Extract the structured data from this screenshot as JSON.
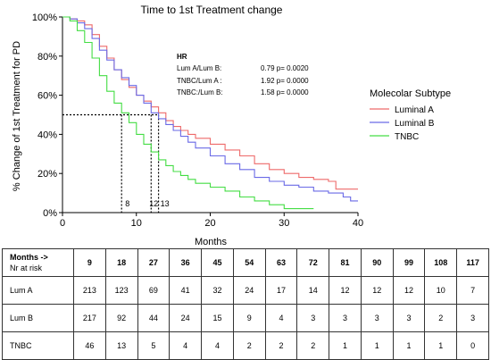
{
  "chart_data": {
    "type": "line",
    "subtype": "kaplan-meier step curve",
    "title": "Time to 1st Treatment change",
    "xlabel": "Months",
    "ylabel": "% Change of 1st Treatment for PD",
    "xlim": [
      0,
      40
    ],
    "ylim": [
      0,
      100
    ],
    "x_ticks": [
      0,
      10,
      20,
      30,
      40
    ],
    "y_ticks": [
      0,
      20,
      40,
      60,
      80,
      100
    ],
    "y_tick_labels": [
      "0%",
      "20%",
      "40%",
      "60%",
      "80%",
      "100%"
    ],
    "grid": false,
    "legend": {
      "title": "Molecolar Subtype",
      "placement": "right"
    },
    "series": [
      {
        "name": "Luminal A",
        "color": "#ee6a6a",
        "x": [
          0,
          1,
          2,
          3,
          4,
          5,
          6,
          7,
          8,
          9,
          10,
          11,
          12,
          13,
          14,
          15,
          16,
          17,
          18,
          20,
          22,
          24,
          26,
          28,
          30,
          32,
          34,
          36,
          37,
          38,
          39,
          40
        ],
        "y": [
          100,
          99,
          98,
          96,
          91,
          85,
          79,
          73,
          68,
          64,
          60,
          57,
          54,
          51,
          47,
          44,
          42,
          40,
          38,
          35,
          32,
          29,
          25,
          22,
          20,
          18,
          17,
          16,
          12,
          12,
          12,
          12
        ]
      },
      {
        "name": "Luminal B",
        "color": "#6a6ae6",
        "x": [
          0,
          1,
          2,
          3,
          4,
          5,
          6,
          7,
          8,
          9,
          10,
          11,
          12,
          13,
          14,
          15,
          16,
          17,
          18,
          20,
          22,
          24,
          26,
          28,
          30,
          32,
          34,
          36,
          38,
          39,
          40
        ],
        "y": [
          100,
          99,
          97,
          94,
          89,
          83,
          78,
          73,
          69,
          65,
          60,
          56,
          51,
          48,
          45,
          42,
          39,
          36,
          33,
          29,
          25,
          22,
          18,
          16,
          14,
          13,
          11,
          10,
          8,
          6,
          6
        ]
      },
      {
        "name": "TNBC",
        "color": "#44dd44",
        "x": [
          0,
          1,
          2,
          3,
          4,
          5,
          6,
          7,
          8,
          9,
          10,
          11,
          12,
          13,
          14,
          15,
          16,
          17,
          18,
          20,
          22,
          24,
          26,
          28,
          30,
          32,
          34
        ],
        "y": [
          100,
          98,
          93,
          87,
          79,
          70,
          62,
          56,
          51,
          46,
          40,
          35,
          31,
          27,
          24,
          21,
          19,
          17,
          15,
          13,
          11,
          8,
          6,
          4,
          2,
          2,
          2
        ]
      }
    ],
    "median_reference": {
      "y": 50,
      "x_values": [
        8,
        12,
        13
      ],
      "labels": [
        "8",
        "12",
        "13"
      ]
    },
    "hr_annotation": {
      "title": "HR",
      "rows": [
        {
          "label": "Lum A/Lum B:",
          "value": "0.79 p= 0.0020"
        },
        {
          "label": "TNBC/Lum A :",
          "value": "1.92 p= 0.0000"
        },
        {
          "label": "TNBC:/Lum B:",
          "value": "1.58 p= 0.0000"
        }
      ]
    }
  },
  "risk_table": {
    "header_label": "Months ->",
    "header_sublabel": "Nr at risk",
    "months": [
      "9",
      "18",
      "27",
      "36",
      "45",
      "54",
      "63",
      "72",
      "81",
      "90",
      "99",
      "108",
      "117"
    ],
    "rows": [
      {
        "label": "Lum A",
        "values": [
          "213",
          "123",
          "69",
          "41",
          "32",
          "24",
          "17",
          "14",
          "12",
          "12",
          "12",
          "10",
          "7"
        ]
      },
      {
        "label": "Lum B",
        "values": [
          "217",
          "92",
          "44",
          "24",
          "15",
          "9",
          "4",
          "3",
          "3",
          "3",
          "3",
          "2",
          "3"
        ]
      },
      {
        "label": "TNBC",
        "values": [
          "46",
          "13",
          "5",
          "4",
          "4",
          "2",
          "2",
          "2",
          "1",
          "1",
          "1",
          "1",
          "0"
        ]
      }
    ]
  }
}
